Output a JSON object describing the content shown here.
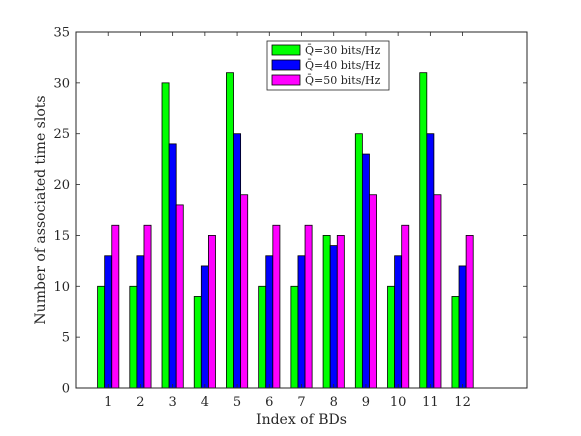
{
  "chart_data": {
    "type": "bar",
    "xlabel": "Index of BDs",
    "ylabel": "Number of associated time slots",
    "categories": [
      "1",
      "2",
      "3",
      "4",
      "5",
      "6",
      "7",
      "8",
      "9",
      "10",
      "11",
      "12"
    ],
    "x_range": [
      0,
      14
    ],
    "ylim": [
      0,
      35
    ],
    "yticks": [
      0,
      5,
      10,
      15,
      20,
      25,
      30,
      35
    ],
    "grid": false,
    "legend_position": "top",
    "series": [
      {
        "name": "Q̄=30 bits/Hz",
        "color": "#00ff00",
        "values": [
          10,
          10,
          30,
          9,
          31,
          10,
          10,
          15,
          25,
          10,
          31,
          9
        ]
      },
      {
        "name": "Q̄=40 bits/Hz",
        "color": "#0000ff",
        "values": [
          13,
          13,
          24,
          12,
          25,
          13,
          13,
          14,
          23,
          13,
          25,
          12
        ]
      },
      {
        "name": "Q̄=50 bits/Hz",
        "color": "#ff00ff",
        "values": [
          16,
          16,
          18,
          15,
          19,
          16,
          16,
          15,
          19,
          16,
          19,
          15
        ]
      }
    ]
  }
}
